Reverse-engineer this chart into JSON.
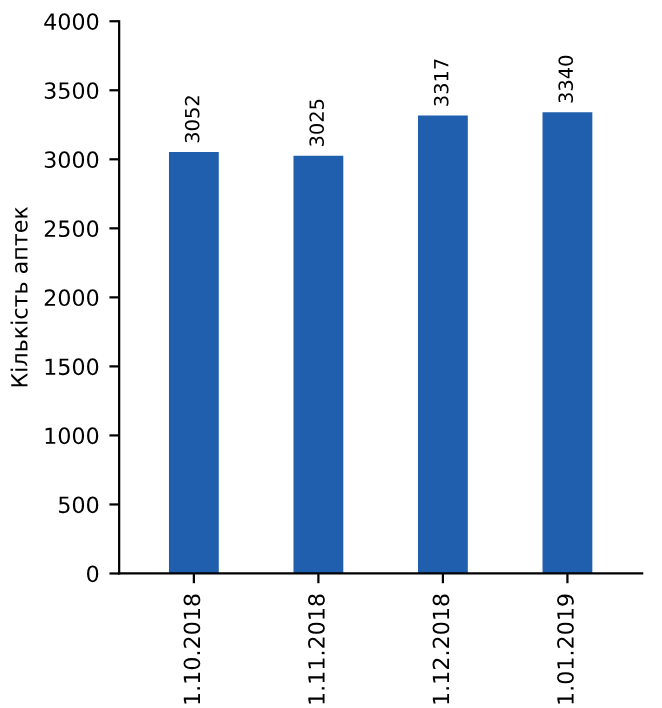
{
  "chart_data": {
    "type": "bar",
    "ylabel": "Кількість аптек",
    "categories": [
      "1.10.2018",
      "1.11.2018",
      "1.12.2018",
      "1.01.2019"
    ],
    "values": [
      3052,
      3025,
      3317,
      3340
    ],
    "color": "#1f5fae",
    "ylim": [
      0,
      4000
    ],
    "yticks": [
      0,
      500,
      1000,
      1500,
      2000,
      2500,
      3000,
      3500,
      4000
    ],
    "grid": false,
    "data_labels": true
  }
}
